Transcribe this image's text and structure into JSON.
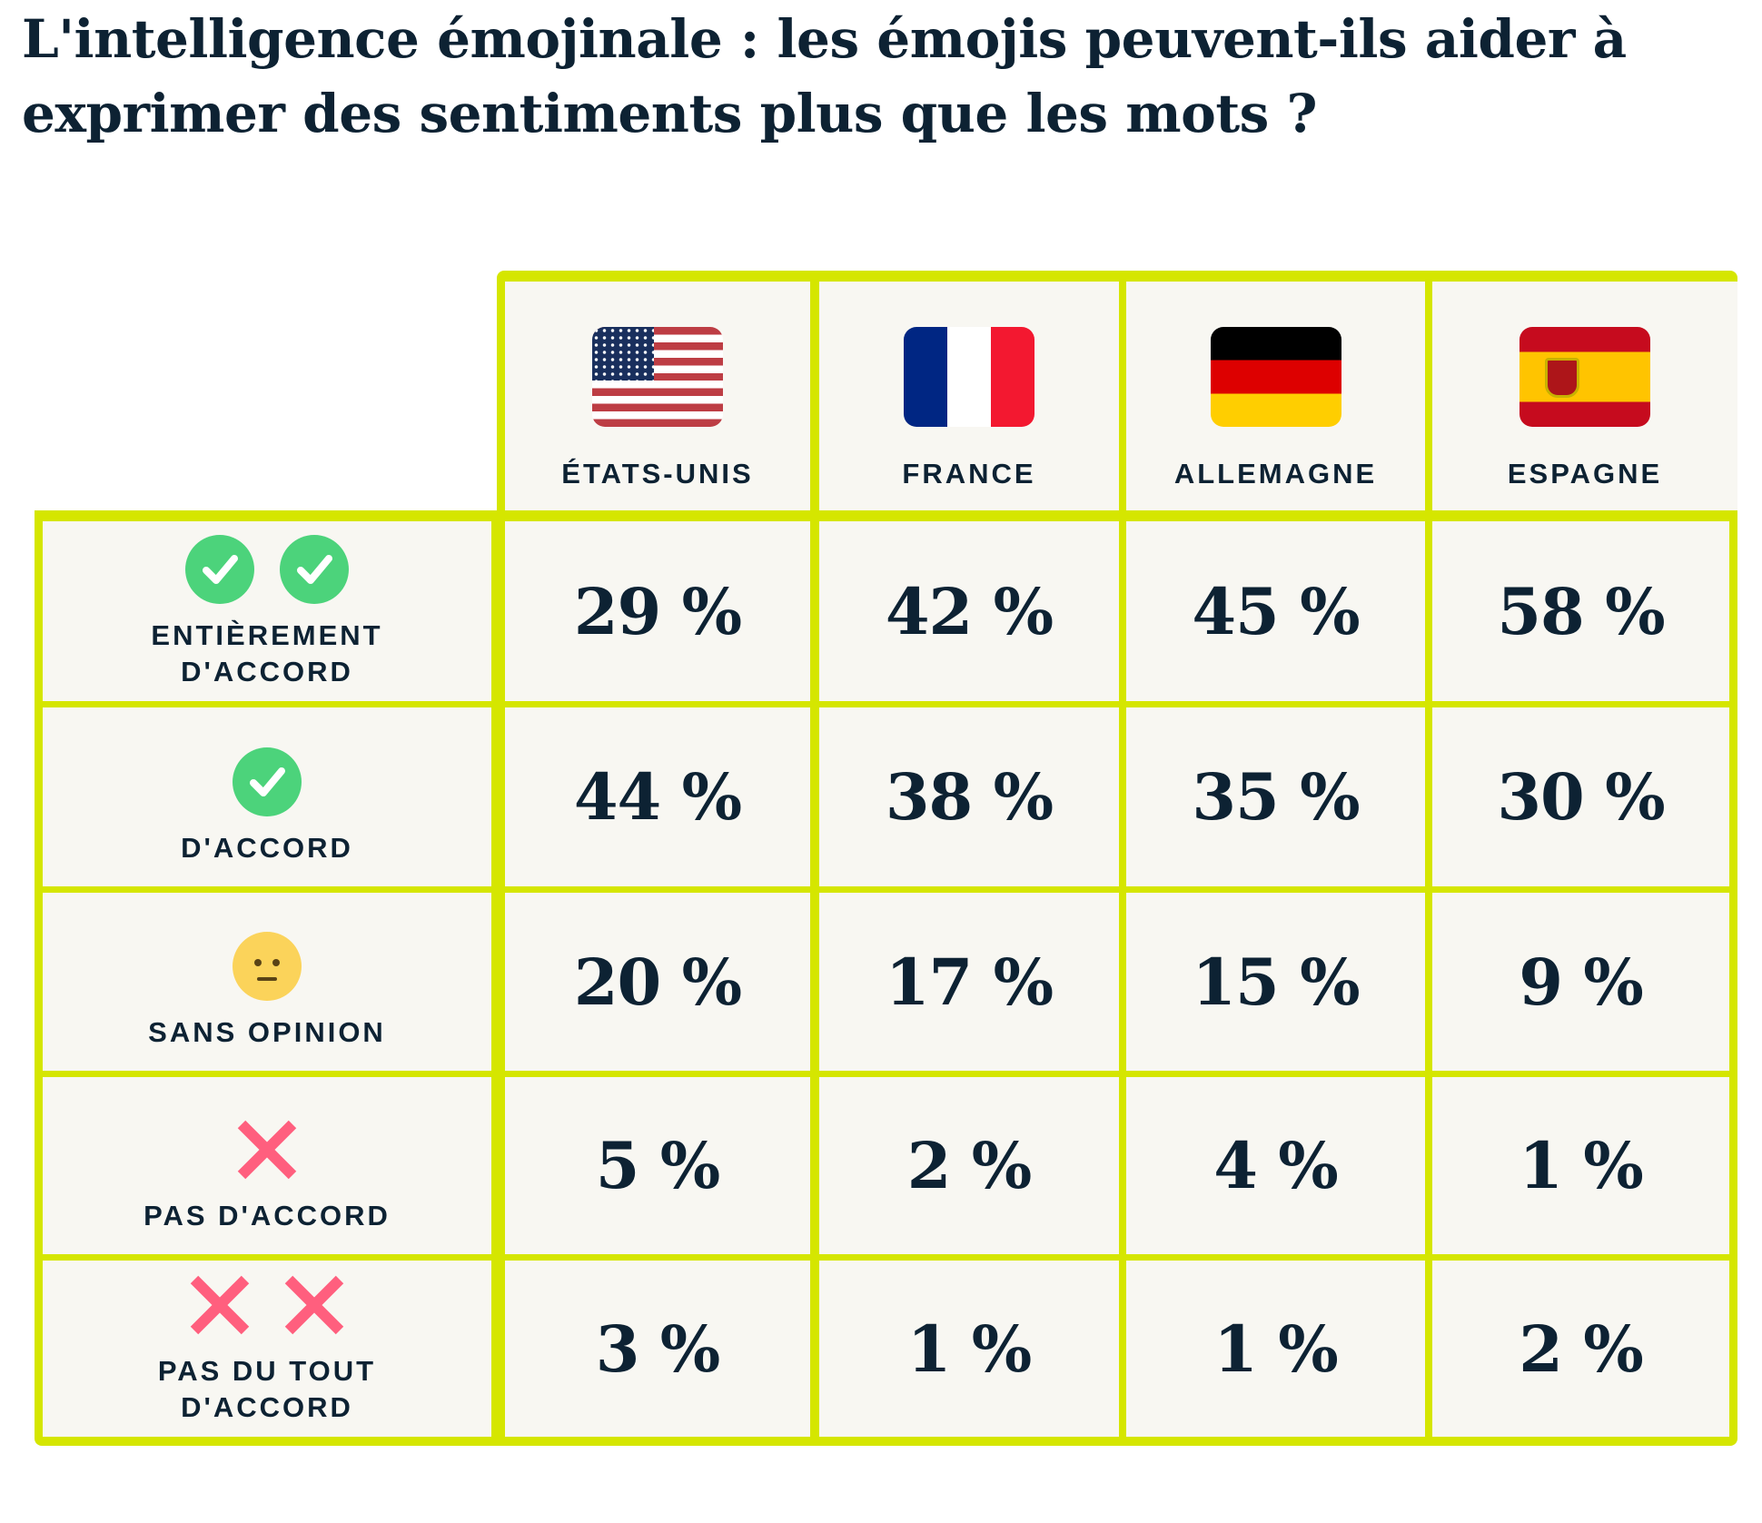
{
  "title": "L'intelligence émojinale : les émojis peuvent-ils aider à exprimer des sentiments plus que les mots ?",
  "colors": {
    "border": "#d5e600",
    "cell": "#f8f7f2",
    "text": "#0d2233",
    "check": "#4cd37b",
    "cross": "#ff5f7e",
    "neutral": "#fbd35a"
  },
  "chart_data": {
    "type": "table",
    "columns": [
      {
        "label": "ÉTATS-UNIS",
        "flag": "us-flag"
      },
      {
        "label": "FRANCE",
        "flag": "france-flag"
      },
      {
        "label": "ALLEMAGNE",
        "flag": "germany-flag"
      },
      {
        "label": "ESPAGNE",
        "flag": "spain-flag"
      }
    ],
    "rows": [
      {
        "label": "ENTIÈREMENT D'ACCORD",
        "icon": "double-check-icon",
        "values": [
          "29 %",
          "42 %",
          "45 %",
          "58 %"
        ]
      },
      {
        "label": "D'ACCORD",
        "icon": "check-icon",
        "values": [
          "44 %",
          "38 %",
          "35 %",
          "30 %"
        ]
      },
      {
        "label": "SANS OPINION",
        "icon": "neutral-face-icon",
        "values": [
          "20 %",
          "17 %",
          "15 %",
          "9 %"
        ]
      },
      {
        "label": "PAS D'ACCORD",
        "icon": "cross-icon",
        "values": [
          "5 %",
          "2 %",
          "4 %",
          "1 %"
        ]
      },
      {
        "label": "PAS DU TOUT D'ACCORD",
        "icon": "double-cross-icon",
        "values": [
          "3 %",
          "1 %",
          "1 %",
          "2 %"
        ]
      }
    ]
  }
}
